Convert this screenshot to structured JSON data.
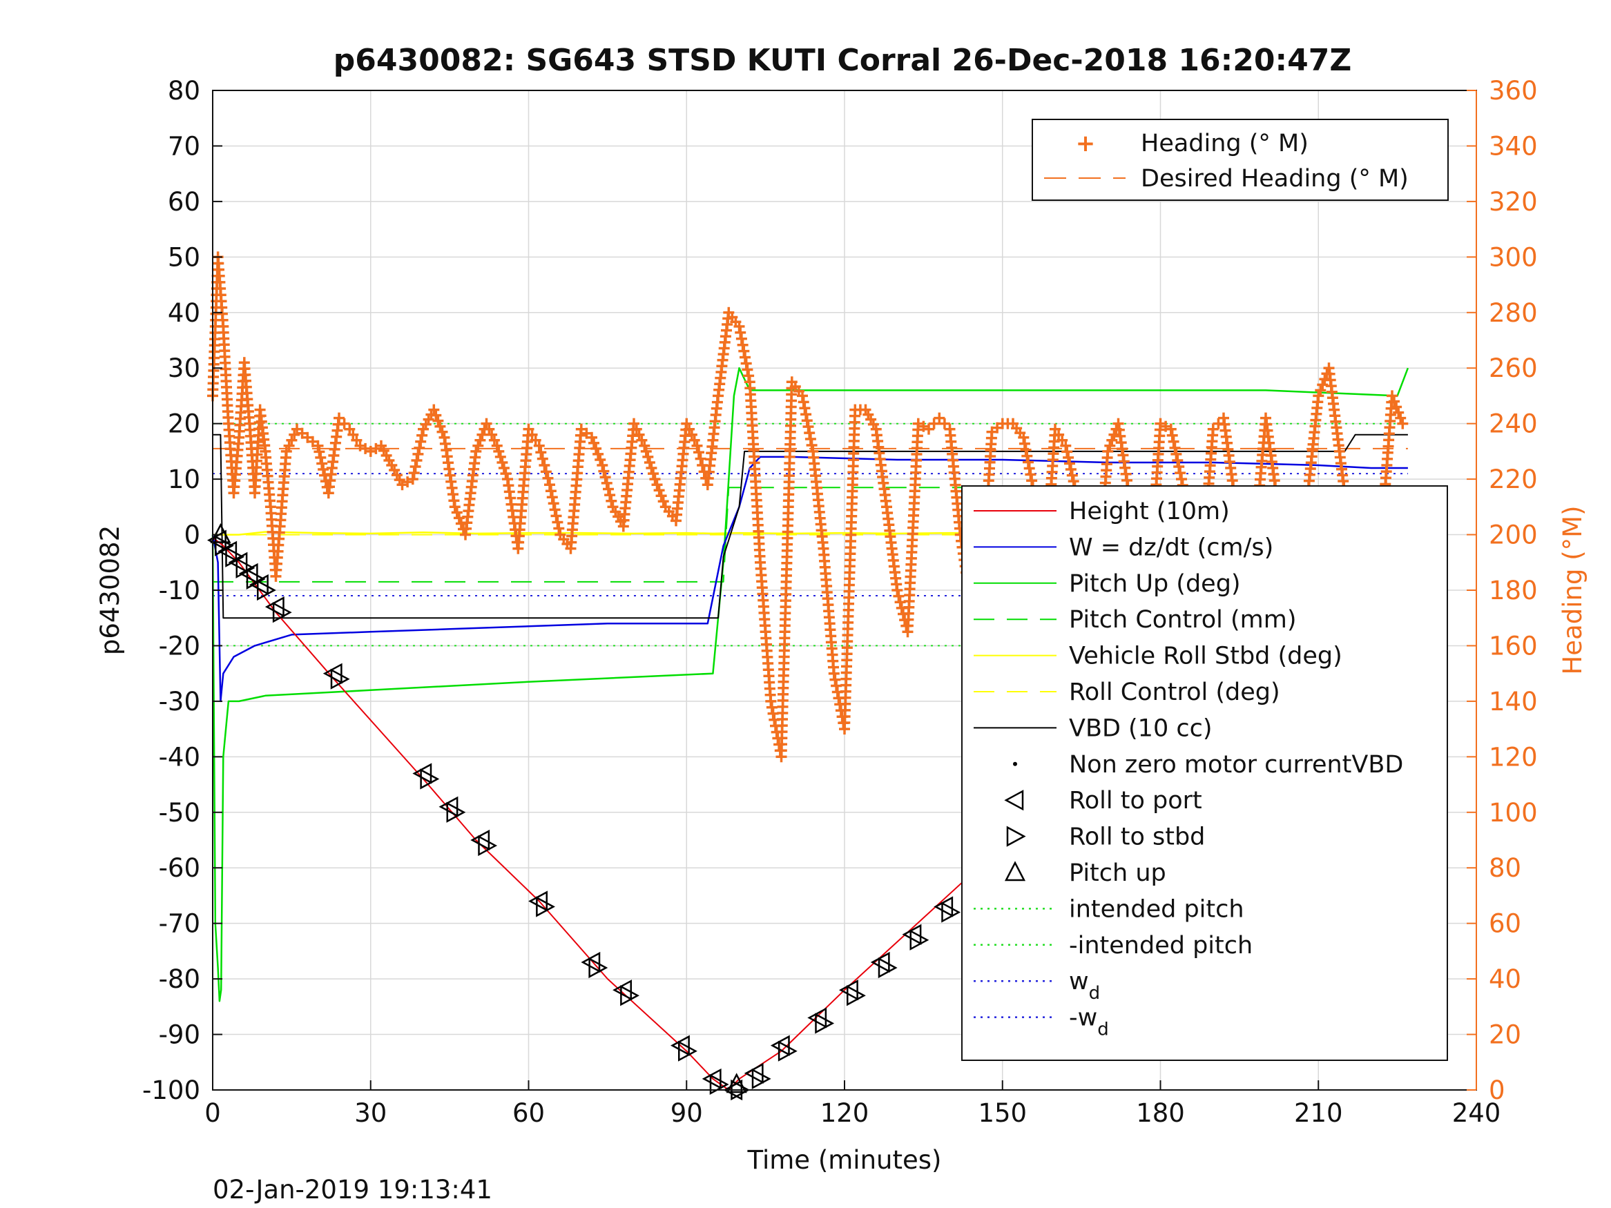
{
  "chart_data": {
    "type": "line",
    "title": "p6430082: SG643 STSD KUTI Corral 26-Dec-2018 16:20:47Z",
    "xlabel": "Time (minutes)",
    "ylabel": "p6430082",
    "ylabel_right": "Heading (°M)",
    "xlim": [
      0,
      240
    ],
    "ylim": [
      -100,
      80
    ],
    "ylim_right": [
      0,
      360
    ],
    "xticks": [
      "0",
      "30",
      "60",
      "90",
      "120",
      "150",
      "180",
      "210",
      "240"
    ],
    "yticks": [
      "-100",
      "-90",
      "-80",
      "-70",
      "-60",
      "-50",
      "-40",
      "-30",
      "-20",
      "-10",
      "0",
      "10",
      "20",
      "30",
      "40",
      "50",
      "60",
      "70",
      "80"
    ],
    "yticks_right": [
      "0",
      "20",
      "40",
      "60",
      "80",
      "100",
      "120",
      "140",
      "160",
      "180",
      "200",
      "220",
      "240",
      "260",
      "280",
      "300",
      "320",
      "340",
      "360"
    ],
    "grid": true,
    "footer": "02-Jan-2019 19:13:41",
    "colors": {
      "height": "#e8000b",
      "w": "#0000e0",
      "pitch": "#00dd00",
      "roll": "#ffff00",
      "vbd": "#000000",
      "heading": "#f2701f",
      "intended": "#22dd22",
      "wd": "#2222dd"
    },
    "legend_heading": {
      "placement": "top-right",
      "entries": [
        "Heading (° M)",
        "Desired Heading (° M)"
      ]
    },
    "legend_main": {
      "placement": "right",
      "entries": [
        "Height (10m)",
        "W = dz/dt (cm/s)",
        "Pitch Up (deg)",
        "Pitch Control (mm)",
        "Vehicle Roll Stbd (deg)",
        "Roll Control (deg)",
        "VBD (10 cc)",
        "Non zero motor currentVBD",
        "Roll to port",
        "Roll to stbd",
        "Pitch up",
        "intended pitch",
        "-intended pitch",
        "w",
        "-w"
      ],
      "subscript": "d"
    },
    "series": [
      {
        "name": "Height (10m)",
        "x": [
          0,
          2,
          5,
          12,
          23,
          40,
          50,
          62,
          75,
          90,
          95,
          98,
          100,
          108,
          120,
          135,
          150,
          165,
          180,
          195,
          210,
          220,
          227
        ],
        "y": [
          -0.5,
          -2,
          -5,
          -14,
          -26,
          -44,
          -55,
          -66,
          -80,
          -93,
          -98,
          -100,
          -98,
          -93,
          -82,
          -69,
          -56,
          -45,
          -36,
          -24,
          -12,
          -5,
          -0.5
        ]
      },
      {
        "name": "W = dz/dt (cm/s)",
        "x": [
          0,
          1,
          1.5,
          2,
          4,
          8,
          15,
          30,
          45,
          60,
          75,
          88,
          94,
          97,
          100,
          102,
          104,
          110,
          130,
          150,
          170,
          190,
          210,
          220,
          227
        ],
        "y": [
          0,
          -5,
          -30,
          -25,
          -22,
          -20,
          -18,
          -17.5,
          -17,
          -16.5,
          -16,
          -16,
          -16,
          -2,
          5,
          12,
          14,
          14,
          13.5,
          13.5,
          13,
          13,
          12.5,
          12,
          12
        ]
      },
      {
        "name": "Pitch Up (deg)",
        "x": [
          0,
          0.5,
          1,
          1.3,
          1.6,
          2,
          3,
          5,
          10,
          30,
          60,
          95,
          97,
          98,
          99,
          100,
          102,
          110,
          150,
          200,
          225,
          227
        ],
        "y": [
          0,
          -70,
          -78,
          -84,
          -82,
          -40,
          -30,
          -30,
          -29,
          -28,
          -26.5,
          -25,
          -5,
          10,
          25,
          30,
          26,
          26,
          26,
          26,
          25,
          30
        ]
      },
      {
        "name": "Pitch Control (mm)",
        "x": [
          0,
          1.5,
          2,
          97,
          98,
          226.5
        ],
        "y": [
          -8.5,
          -8.5,
          -8.5,
          -8.5,
          8.5,
          8.5
        ]
      },
      {
        "name": "Vehicle Roll Stbd (deg)",
        "x": [
          0,
          5,
          10,
          20,
          30,
          40,
          50,
          60,
          70,
          80,
          90,
          95,
          100,
          110,
          120,
          130,
          140,
          150,
          160,
          170,
          180,
          190,
          200,
          210,
          220,
          227
        ],
        "y": [
          0,
          0,
          0.5,
          0.3,
          0.2,
          0.4,
          0.2,
          0.3,
          0.3,
          0.2,
          0.3,
          0.2,
          0.3,
          0.2,
          0.3,
          0.2,
          0.3,
          0.2,
          0.3,
          0.2,
          0.3,
          0.2,
          0.3,
          0.2,
          0.3,
          0.2
        ]
      },
      {
        "name": "Roll Control (deg)",
        "x": [
          0,
          227
        ],
        "y": [
          0,
          0
        ]
      },
      {
        "name": "VBD (10 cc)",
        "x": [
          0,
          1.5,
          2,
          96,
          97,
          100,
          101,
          215,
          217,
          227
        ],
        "y": [
          18,
          18,
          -15,
          -15,
          -4,
          5,
          15,
          15,
          18,
          18
        ]
      },
      {
        "name": "intended pitch",
        "x": [
          0,
          227
        ],
        "y": [
          20,
          20
        ]
      },
      {
        "name": "-intended pitch",
        "x": [
          0,
          227
        ],
        "y": [
          -20,
          -20
        ]
      },
      {
        "name": "w_d",
        "x": [
          0,
          227
        ],
        "y": [
          11,
          11
        ]
      },
      {
        "name": "-w_d",
        "x": [
          0,
          227
        ],
        "y": [
          -11,
          -11
        ]
      },
      {
        "name": "Desired Heading (° M)",
        "x": [
          0,
          227
        ],
        "y": [
          231,
          231
        ]
      },
      {
        "name": "Heading (° M)",
        "axis": "right",
        "x": [
          0,
          1,
          2,
          3,
          4,
          5,
          6,
          7,
          8,
          9,
          10,
          11,
          12,
          14,
          16,
          18,
          20,
          22,
          24,
          26,
          28,
          30,
          32,
          34,
          36,
          38,
          40,
          42,
          44,
          46,
          48,
          50,
          52,
          54,
          56,
          58,
          60,
          62,
          64,
          66,
          68,
          70,
          72,
          74,
          76,
          78,
          80,
          82,
          84,
          86,
          88,
          90,
          92,
          94,
          96,
          98,
          100,
          102,
          104,
          106,
          108,
          110,
          112,
          114,
          116,
          118,
          120,
          122,
          124,
          126,
          128,
          130,
          132,
          134,
          136,
          138,
          140,
          142,
          144,
          146,
          148,
          150,
          152,
          154,
          156,
          158,
          160,
          162,
          164,
          166,
          168,
          170,
          172,
          174,
          176,
          178,
          180,
          182,
          184,
          186,
          188,
          190,
          192,
          194,
          196,
          198,
          200,
          202,
          204,
          206,
          208,
          210,
          212,
          214,
          216,
          218,
          220,
          222,
          224,
          226
        ],
        "y": [
          250,
          300,
          275,
          240,
          215,
          235,
          262,
          240,
          215,
          245,
          230,
          210,
          185,
          230,
          238,
          235,
          232,
          215,
          242,
          238,
          232,
          230,
          232,
          225,
          218,
          220,
          238,
          245,
          235,
          210,
          200,
          230,
          240,
          232,
          220,
          195,
          238,
          232,
          218,
          200,
          195,
          238,
          235,
          225,
          210,
          203,
          240,
          232,
          220,
          210,
          205,
          240,
          232,
          218,
          250,
          280,
          275,
          255,
          190,
          140,
          120,
          255,
          250,
          230,
          195,
          150,
          130,
          245,
          245,
          238,
          210,
          180,
          165,
          240,
          238,
          242,
          238,
          200,
          175,
          180,
          237,
          240,
          240,
          235,
          215,
          185,
          238,
          232,
          215,
          200,
          180,
          230,
          240,
          215,
          192,
          185,
          240,
          238,
          220,
          200,
          190,
          238,
          242,
          215,
          200,
          200,
          242,
          215,
          190,
          200,
          215,
          250,
          260,
          230,
          200,
          185,
          170,
          200,
          250,
          240
        ]
      },
      {
        "name": "Roll to port",
        "x": [
          1,
          3,
          5,
          7,
          9,
          12,
          23,
          40,
          45,
          51,
          62,
          72,
          78,
          89,
          95,
          99,
          103,
          108,
          115,
          121,
          127,
          133,
          139,
          145,
          151,
          162,
          173,
          179,
          185,
          197,
          200,
          205,
          208,
          210,
          215,
          218,
          222,
          226
        ],
        "y": [
          -1,
          -3,
          -5,
          -7,
          -9,
          -13,
          -25,
          -43,
          -49,
          -55,
          -66,
          -77,
          -82,
          -92,
          -98,
          -100,
          -97,
          -92,
          -87,
          -82,
          -77,
          -72,
          -67,
          -62,
          -57,
          -49,
          -40,
          -36,
          -31,
          -22,
          -19,
          -16,
          -14,
          -11,
          -8,
          -6,
          -3,
          -1
        ]
      },
      {
        "name": "Roll to stbd",
        "x": [
          2,
          4,
          6,
          8,
          10,
          13,
          24,
          41,
          46,
          52,
          63,
          73,
          79,
          90,
          96,
          100,
          104,
          109,
          116,
          122,
          128,
          134,
          140,
          146,
          152,
          163,
          174,
          180,
          186,
          198,
          201,
          206,
          209,
          211,
          216,
          219,
          223,
          227
        ],
        "y": [
          -2,
          -4,
          -6,
          -8,
          -10,
          -14,
          -26,
          -44,
          -50,
          -56,
          -67,
          -78,
          -83,
          -93,
          -99,
          -100,
          -98,
          -93,
          -88,
          -83,
          -78,
          -73,
          -68,
          -63,
          -58,
          -50,
          -41,
          -37,
          -32,
          -23,
          -20,
          -17,
          -15,
          -12,
          -9,
          -7,
          -4,
          -1
        ]
      },
      {
        "name": "Pitch up",
        "x": [
          1.5,
          99.5
        ],
        "y": [
          0,
          -99
        ]
      }
    ]
  }
}
